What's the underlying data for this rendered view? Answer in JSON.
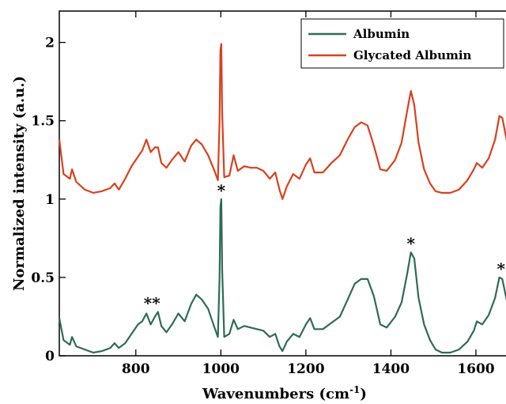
{
  "chart_data": {
    "type": "line",
    "xlabel": "Wavenumbers (cm",
    "xlabel_sup": "-1",
    "xlabel_close": ")",
    "ylabel": "Normalized intensity (a.u.)",
    "xlim": [
      620,
      1680
    ],
    "ylim": [
      0,
      2.2
    ],
    "xticks": [
      800,
      1000,
      1200,
      1400,
      1600
    ],
    "yticks": [
      0,
      0.5,
      1,
      1.5,
      2
    ],
    "ytick_labels": [
      "0",
      "0.5",
      "1",
      "1.5",
      "2"
    ],
    "grid": false,
    "legend_position": "top-right",
    "series": [
      {
        "name": "Albumin",
        "color": "#2e6b58",
        "points": [
          [
            620,
            0.24
          ],
          [
            630,
            0.1
          ],
          [
            645,
            0.07
          ],
          [
            650,
            0.12
          ],
          [
            660,
            0.06
          ],
          [
            680,
            0.04
          ],
          [
            700,
            0.02
          ],
          [
            720,
            0.03
          ],
          [
            740,
            0.05
          ],
          [
            750,
            0.08
          ],
          [
            760,
            0.05
          ],
          [
            775,
            0.08
          ],
          [
            790,
            0.14
          ],
          [
            805,
            0.2
          ],
          [
            815,
            0.22
          ],
          [
            825,
            0.27
          ],
          [
            835,
            0.2
          ],
          [
            845,
            0.25
          ],
          [
            852,
            0.28
          ],
          [
            860,
            0.19
          ],
          [
            872,
            0.15
          ],
          [
            885,
            0.2
          ],
          [
            900,
            0.27
          ],
          [
            915,
            0.22
          ],
          [
            930,
            0.33
          ],
          [
            942,
            0.39
          ],
          [
            955,
            0.36
          ],
          [
            970,
            0.3
          ],
          [
            985,
            0.18
          ],
          [
            993,
            0.12
          ],
          [
            997,
            0.5
          ],
          [
            999,
            0.95
          ],
          [
            1001,
            1.0
          ],
          [
            1003,
            0.55
          ],
          [
            1008,
            0.12
          ],
          [
            1020,
            0.14
          ],
          [
            1030,
            0.23
          ],
          [
            1040,
            0.17
          ],
          [
            1055,
            0.19
          ],
          [
            1070,
            0.18
          ],
          [
            1085,
            0.17
          ],
          [
            1100,
            0.16
          ],
          [
            1115,
            0.12
          ],
          [
            1128,
            0.14
          ],
          [
            1138,
            0.06
          ],
          [
            1145,
            0.03
          ],
          [
            1155,
            0.09
          ],
          [
            1170,
            0.14
          ],
          [
            1185,
            0.12
          ],
          [
            1200,
            0.2
          ],
          [
            1210,
            0.24
          ],
          [
            1220,
            0.17
          ],
          [
            1240,
            0.17
          ],
          [
            1260,
            0.21
          ],
          [
            1280,
            0.25
          ],
          [
            1300,
            0.37
          ],
          [
            1315,
            0.46
          ],
          [
            1330,
            0.49
          ],
          [
            1345,
            0.49
          ],
          [
            1360,
            0.38
          ],
          [
            1375,
            0.2
          ],
          [
            1390,
            0.18
          ],
          [
            1410,
            0.25
          ],
          [
            1425,
            0.34
          ],
          [
            1438,
            0.52
          ],
          [
            1447,
            0.66
          ],
          [
            1455,
            0.62
          ],
          [
            1465,
            0.37
          ],
          [
            1478,
            0.2
          ],
          [
            1492,
            0.1
          ],
          [
            1505,
            0.04
          ],
          [
            1520,
            0.02
          ],
          [
            1540,
            0.02
          ],
          [
            1560,
            0.04
          ],
          [
            1580,
            0.09
          ],
          [
            1595,
            0.16
          ],
          [
            1602,
            0.22
          ],
          [
            1615,
            0.2
          ],
          [
            1630,
            0.26
          ],
          [
            1645,
            0.37
          ],
          [
            1655,
            0.5
          ],
          [
            1662,
            0.49
          ],
          [
            1672,
            0.36
          ],
          [
            1680,
            0.3
          ]
        ]
      },
      {
        "name": "Glycated Albumin",
        "color": "#d9401e",
        "points": [
          [
            620,
            1.38
          ],
          [
            630,
            1.16
          ],
          [
            645,
            1.13
          ],
          [
            650,
            1.19
          ],
          [
            660,
            1.11
          ],
          [
            680,
            1.06
          ],
          [
            700,
            1.04
          ],
          [
            720,
            1.05
          ],
          [
            740,
            1.07
          ],
          [
            750,
            1.1
          ],
          [
            760,
            1.06
          ],
          [
            775,
            1.13
          ],
          [
            790,
            1.21
          ],
          [
            805,
            1.27
          ],
          [
            815,
            1.31
          ],
          [
            825,
            1.38
          ],
          [
            835,
            1.3
          ],
          [
            845,
            1.33
          ],
          [
            852,
            1.33
          ],
          [
            860,
            1.23
          ],
          [
            872,
            1.2
          ],
          [
            885,
            1.25
          ],
          [
            900,
            1.3
          ],
          [
            915,
            1.24
          ],
          [
            930,
            1.34
          ],
          [
            942,
            1.38
          ],
          [
            955,
            1.35
          ],
          [
            970,
            1.28
          ],
          [
            985,
            1.18
          ],
          [
            993,
            1.12
          ],
          [
            997,
            1.5
          ],
          [
            999,
            1.95
          ],
          [
            1001,
            1.99
          ],
          [
            1003,
            1.55
          ],
          [
            1008,
            1.14
          ],
          [
            1020,
            1.15
          ],
          [
            1030,
            1.28
          ],
          [
            1040,
            1.18
          ],
          [
            1055,
            1.21
          ],
          [
            1070,
            1.2
          ],
          [
            1085,
            1.2
          ],
          [
            1100,
            1.18
          ],
          [
            1115,
            1.13
          ],
          [
            1128,
            1.17
          ],
          [
            1138,
            1.06
          ],
          [
            1145,
            1.0
          ],
          [
            1155,
            1.08
          ],
          [
            1170,
            1.16
          ],
          [
            1185,
            1.13
          ],
          [
            1200,
            1.22
          ],
          [
            1210,
            1.26
          ],
          [
            1220,
            1.17
          ],
          [
            1240,
            1.17
          ],
          [
            1260,
            1.23
          ],
          [
            1280,
            1.28
          ],
          [
            1300,
            1.39
          ],
          [
            1315,
            1.46
          ],
          [
            1330,
            1.49
          ],
          [
            1345,
            1.47
          ],
          [
            1360,
            1.34
          ],
          [
            1375,
            1.19
          ],
          [
            1390,
            1.18
          ],
          [
            1410,
            1.25
          ],
          [
            1425,
            1.36
          ],
          [
            1438,
            1.56
          ],
          [
            1447,
            1.69
          ],
          [
            1455,
            1.6
          ],
          [
            1465,
            1.36
          ],
          [
            1478,
            1.19
          ],
          [
            1492,
            1.1
          ],
          [
            1505,
            1.05
          ],
          [
            1520,
            1.04
          ],
          [
            1540,
            1.04
          ],
          [
            1560,
            1.06
          ],
          [
            1580,
            1.12
          ],
          [
            1595,
            1.19
          ],
          [
            1602,
            1.23
          ],
          [
            1615,
            1.2
          ],
          [
            1630,
            1.26
          ],
          [
            1645,
            1.38
          ],
          [
            1655,
            1.53
          ],
          [
            1662,
            1.52
          ],
          [
            1672,
            1.38
          ],
          [
            1680,
            1.33
          ]
        ]
      }
    ],
    "annotations": [
      {
        "text": "*",
        "x": 1001,
        "y": 1.0
      },
      {
        "text": "**",
        "x": 838,
        "y": 0.28
      },
      {
        "text": "*",
        "x": 1447,
        "y": 0.66
      },
      {
        "text": "*",
        "x": 1659,
        "y": 0.5
      }
    ]
  }
}
